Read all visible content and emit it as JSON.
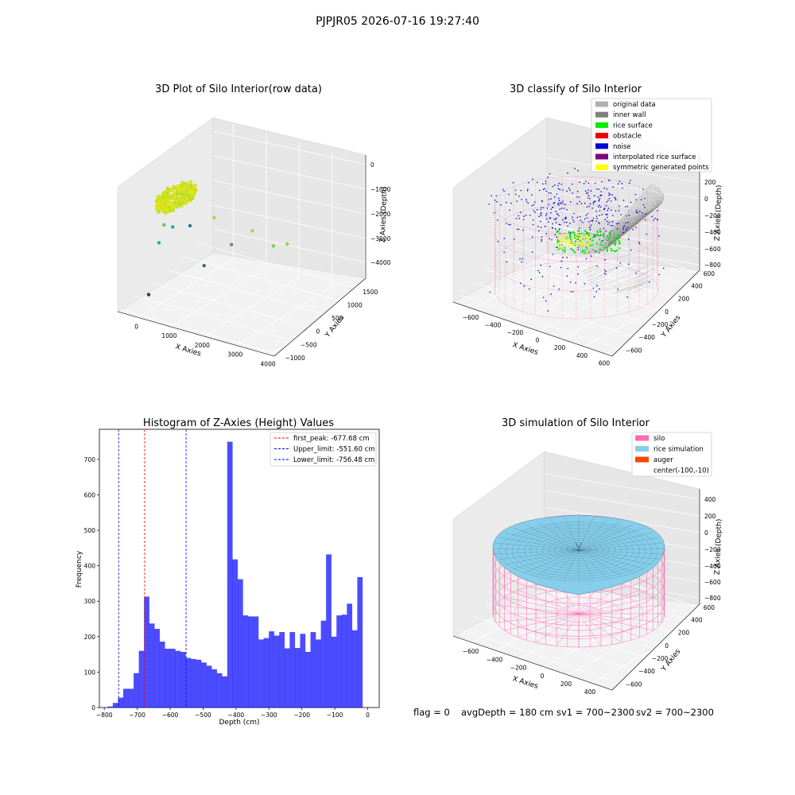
{
  "figure": {
    "suptitle": "PJPJR05 2026-07-16 19:27:40",
    "status": {
      "flag": "flag = 0",
      "avg": "avgDepth = 180 cm",
      "sv1": "sv1 = 700~2300",
      "sv2": "sv2 = 700~2300"
    }
  },
  "chart_data": [
    {
      "type": "scatter",
      "title": "3D Plot of Silo Interior(row data)",
      "xlabel": "X Axies",
      "ylabel": "Y Axies",
      "zlabel": "Z Axies (Depth)",
      "xticks": [
        "0",
        "1000",
        "2000",
        "3000",
        "4000"
      ],
      "yticks": [
        "−1000",
        "−500",
        "0",
        "500",
        "1000",
        "1500"
      ],
      "zticks": [
        "0",
        "−1000",
        "−2000",
        "−3000",
        "−4000"
      ],
      "xlim": [
        -500,
        4000
      ],
      "ylim": [
        -1000,
        1800
      ],
      "zlim": [
        -4500,
        200
      ],
      "colormap": "viridis",
      "dense_cluster": {
        "x_range": [
          -100,
          500
        ],
        "y_range": [
          -500,
          500
        ],
        "z_range": [
          -1000,
          -600
        ],
        "color": "#d4e21a"
      },
      "outliers": [
        {
          "x": 150,
          "y": -300,
          "z": -1600,
          "color": "#5cc863"
        },
        {
          "x": 300,
          "y": -200,
          "z": -1700,
          "color": "#21a585"
        },
        {
          "x": 600,
          "y": 0,
          "z": -1700,
          "color": "#2c728e"
        },
        {
          "x": 900,
          "y": 400,
          "z": -1600,
          "color": "#a0da39"
        },
        {
          "x": 100,
          "y": -400,
          "z": -2200,
          "color": "#29af7f"
        },
        {
          "x": 1500,
          "y": 300,
          "z": -2300,
          "color": "#7e7e7e"
        },
        {
          "x": 1900,
          "y": 500,
          "z": -1800,
          "color": "#a5db36"
        },
        {
          "x": 1200,
          "y": -200,
          "z": -2800,
          "color": "#31688e"
        },
        {
          "x": 2800,
          "y": 200,
          "z": -1800,
          "color": "#7ad151"
        },
        {
          "x": 3100,
          "y": 300,
          "z": -1700,
          "color": "#8fd744"
        },
        {
          "x": 0,
          "y": -600,
          "z": -4000,
          "color": "#482878"
        }
      ]
    },
    {
      "type": "scatter",
      "title": "3D classify of Silo Interior",
      "xlabel": "X Axies",
      "ylabel": "Y Axies",
      "zlabel": "Z Axies (Depth)",
      "xticks": [
        "−600",
        "−400",
        "−200",
        "0",
        "200",
        "400",
        "600"
      ],
      "yticks": [
        "−600",
        "−400",
        "−200",
        "0",
        "200",
        "400",
        "600"
      ],
      "zticks": [
        "200",
        "0",
        "−200",
        "−400",
        "−600",
        "−800"
      ],
      "legend": [
        {
          "label": "original data",
          "color": "#b0b0b0"
        },
        {
          "label": "inner wall",
          "color": "#808080"
        },
        {
          "label": "rice surface",
          "color": "#00ee00"
        },
        {
          "label": "obstacle",
          "color": "#ee0000"
        },
        {
          "label": "noise",
          "color": "#0000dd"
        },
        {
          "label": "interpolated rice surface",
          "color": "#800080"
        },
        {
          "label": "symmetric generated points",
          "color": "#ffff00"
        }
      ],
      "legend_position": "upper right"
    },
    {
      "type": "bar",
      "title": "Histogram of Z-Axies (Height) Values",
      "xlabel": "Depth (cm)",
      "ylabel": "Frequency",
      "xlim": [
        -815,
        35
      ],
      "ylim": [
        0,
        785
      ],
      "xticks": [
        "−800",
        "−700",
        "−600",
        "−500",
        "−400",
        "−300",
        "−200",
        "−100",
        "0"
      ],
      "yticks": [
        "0",
        "100",
        "200",
        "300",
        "400",
        "500",
        "600",
        "700"
      ],
      "bar_color": "#0000ff",
      "bin_start": -790,
      "bin_width": 15.8,
      "values": [
        3,
        13,
        28,
        53,
        53,
        97,
        160,
        313,
        237,
        222,
        186,
        166,
        166,
        160,
        157,
        140,
        137,
        135,
        127,
        118,
        108,
        97,
        88,
        750,
        418,
        362,
        260,
        257,
        257,
        192,
        196,
        215,
        203,
        213,
        167,
        213,
        168,
        208,
        157,
        213,
        192,
        245,
        432,
        200,
        260,
        262,
        293,
        218,
        368
      ],
      "vlines": [
        {
          "label": "first_peak: -677.68 cm",
          "x": -677.68,
          "color": "#ff0000"
        },
        {
          "label": "Upper_limit: -551.60 cm",
          "x": -551.6,
          "color": "#0000ff"
        },
        {
          "label": "Lower_limit: -756.48 cm",
          "x": -756.48,
          "color": "#0000ff"
        }
      ],
      "legend_position": "upper right"
    },
    {
      "type": "surface",
      "title": "3D simulation of Silo Interior",
      "xlabel": "X Axies",
      "ylabel": "Y Axies",
      "zlabel": "Z Axies (Depth)",
      "xticks": [
        "−600",
        "−400",
        "−200",
        "0",
        "200",
        "400"
      ],
      "yticks": [
        "−600",
        "−400",
        "−200",
        "0",
        "200",
        "400",
        "600"
      ],
      "zticks": [
        "400",
        "200",
        "0",
        "−200",
        "−400",
        "−600",
        "−800"
      ],
      "legend": [
        {
          "label": "silo",
          "color": "#ff69b4"
        },
        {
          "label": "rice simulation",
          "color": "#87ceeb"
        },
        {
          "label": "auger",
          "color": "#ff4500"
        },
        {
          "label": "center(-100,-10)",
          "color": ""
        }
      ],
      "legend_position": "upper right"
    }
  ]
}
